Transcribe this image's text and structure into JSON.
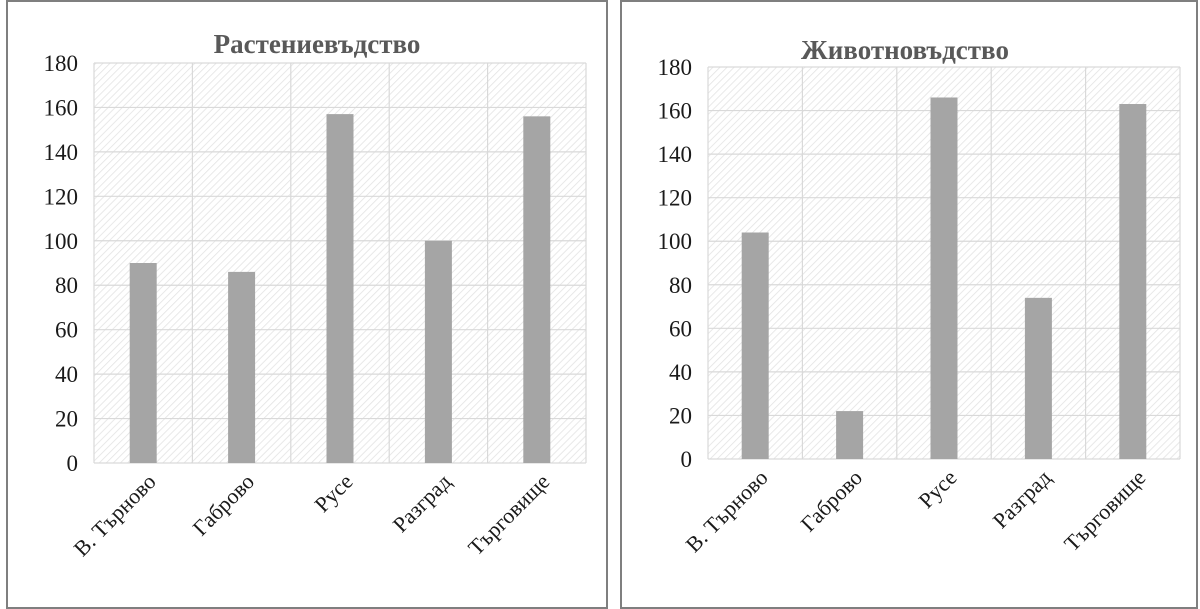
{
  "chart_data": [
    {
      "type": "bar",
      "title": "Растениевъдство",
      "categories": [
        "В. Търново",
        "Габрово",
        "Русе",
        "Разград",
        "Търговище"
      ],
      "values": [
        90,
        86,
        157,
        100,
        156
      ],
      "ylim": [
        0,
        180
      ],
      "yticks": [
        0,
        20,
        40,
        60,
        80,
        100,
        120,
        140,
        160,
        180
      ],
      "grid": true,
      "colors": {
        "bar": "#a5a5a5",
        "grid": "#d9d9d9",
        "hatch": "#e3e3e3"
      }
    },
    {
      "type": "bar",
      "title": "Животновъдство",
      "categories": [
        "В. Търново",
        "Габрово",
        "Русе",
        "Разград",
        "Търговище"
      ],
      "values": [
        104,
        22,
        166,
        74,
        163
      ],
      "ylim": [
        0,
        180
      ],
      "yticks": [
        0,
        20,
        40,
        60,
        80,
        100,
        120,
        140,
        160,
        180
      ],
      "grid": true,
      "colors": {
        "bar": "#a5a5a5",
        "grid": "#d9d9d9",
        "hatch": "#e3e3e3"
      }
    }
  ]
}
